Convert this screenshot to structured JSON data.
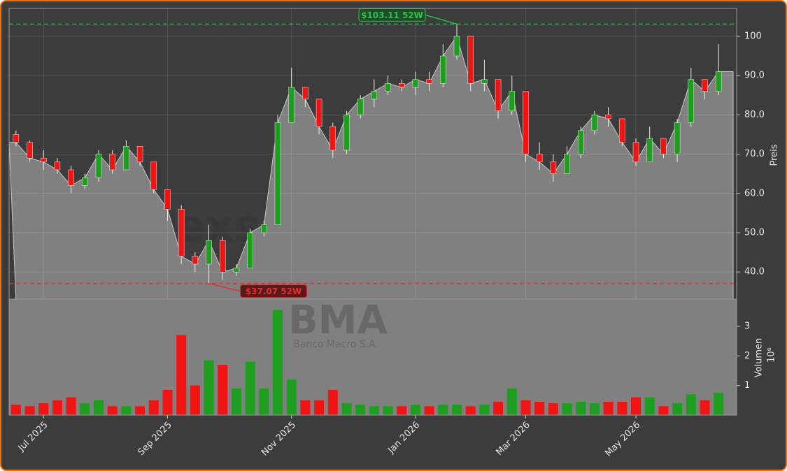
{
  "chart_data": [
    {
      "type": "candlestick",
      "watermark": "forexsignale.trade",
      "ylabel": "Preis",
      "categories": [
        null,
        null,
        "Jul 2025",
        null,
        null,
        null,
        null,
        null,
        null,
        null,
        null,
        "Sep 2025",
        null,
        null,
        null,
        null,
        null,
        null,
        null,
        null,
        "Nov 2025",
        null,
        null,
        null,
        null,
        null,
        null,
        null,
        null,
        "Jan 2026",
        null,
        null,
        null,
        null,
        null,
        null,
        null,
        "Mar 2026",
        null,
        null,
        null,
        null,
        null,
        null,
        null,
        "May 2026",
        null,
        null,
        null,
        null,
        null,
        null
      ],
      "open": [
        75,
        73,
        69,
        68,
        66,
        62,
        64,
        70,
        66,
        72,
        68,
        61,
        56,
        44,
        42,
        48,
        40,
        41,
        50,
        52,
        78,
        87,
        84,
        77,
        71,
        80,
        84,
        86,
        88,
        87,
        89,
        88,
        95,
        100,
        88,
        89,
        81,
        86,
        70,
        68,
        65,
        70,
        76,
        80,
        79,
        73,
        68,
        74,
        70,
        78,
        89,
        86
      ],
      "high": [
        76,
        73.5,
        71,
        69,
        67,
        65,
        71,
        71,
        73.5,
        72,
        68,
        61,
        57,
        45,
        52,
        49,
        42,
        51,
        53,
        80,
        92,
        87,
        84,
        78,
        81,
        85,
        89,
        90,
        89,
        91,
        91,
        98,
        103.11,
        100,
        94,
        89,
        90,
        86,
        73,
        70,
        72,
        77,
        81,
        82,
        79,
        74,
        77,
        74,
        79,
        92,
        89,
        98
      ],
      "low": [
        72,
        68,
        66,
        65,
        60,
        61,
        63,
        65,
        66,
        67,
        60,
        53,
        42,
        40,
        37.07,
        38,
        39,
        41,
        49,
        52,
        78,
        82,
        75,
        69,
        70,
        79,
        82,
        85,
        86,
        85,
        86,
        87,
        94,
        86,
        86,
        79,
        80,
        68,
        66,
        63,
        65,
        69,
        75,
        77,
        72,
        67,
        68,
        69,
        68,
        77,
        84,
        85
      ],
      "close": [
        73,
        69,
        68,
        66,
        62,
        64,
        70,
        66,
        72,
        68,
        61,
        56,
        44,
        42,
        48,
        40,
        41,
        50,
        52,
        78,
        87,
        84,
        77,
        71,
        80,
        84,
        86,
        88,
        87,
        89,
        88,
        95,
        100,
        88,
        89,
        81,
        86,
        70,
        68,
        65,
        70,
        76,
        80,
        79,
        73,
        68,
        74,
        70,
        78,
        89,
        86,
        91
      ],
      "up_color": "#1e9e1e",
      "down_color": "#f01414",
      "area_color": "#808080",
      "ylim": [
        33.1,
        107.1
      ],
      "yticks": [
        {
          "value": 40,
          "label": "40.0"
        },
        {
          "value": 50,
          "label": "50.0"
        },
        {
          "value": 60,
          "label": "60.0"
        },
        {
          "value": 70,
          "label": "70.0"
        },
        {
          "value": 80,
          "label": "80.0"
        },
        {
          "value": 90,
          "label": "90.0"
        },
        100
      ],
      "grid": true,
      "annotations": [
        {
          "text": "$103.11 52W",
          "value": 103.11,
          "color": "#2fbf4f"
        },
        {
          "text": "$37.07 52W",
          "value": 37.07,
          "color": "#e03030"
        }
      ]
    },
    {
      "type": "bar",
      "title": "BMA",
      "subtitle": "Banco Macro S.A.",
      "ylabel": "Volumen",
      "scale_label": "10⁶",
      "values": [
        0.35,
        0.3,
        0.4,
        0.5,
        0.6,
        0.4,
        0.5,
        0.3,
        0.3,
        0.3,
        0.5,
        0.85,
        2.7,
        1.0,
        1.85,
        1.7,
        0.9,
        1.8,
        0.9,
        3.55,
        1.2,
        0.5,
        0.5,
        0.85,
        0.4,
        0.35,
        0.3,
        0.3,
        0.3,
        0.35,
        0.3,
        0.35,
        0.35,
        0.3,
        0.35,
        0.45,
        0.9,
        0.5,
        0.45,
        0.4,
        0.4,
        0.45,
        0.4,
        0.45,
        0.45,
        0.6,
        0.6,
        0.3,
        0.4,
        0.7,
        0.5,
        0.75
      ],
      "ylim": [
        0,
        3.92
      ],
      "yticks": [
        1,
        2,
        3
      ]
    }
  ]
}
